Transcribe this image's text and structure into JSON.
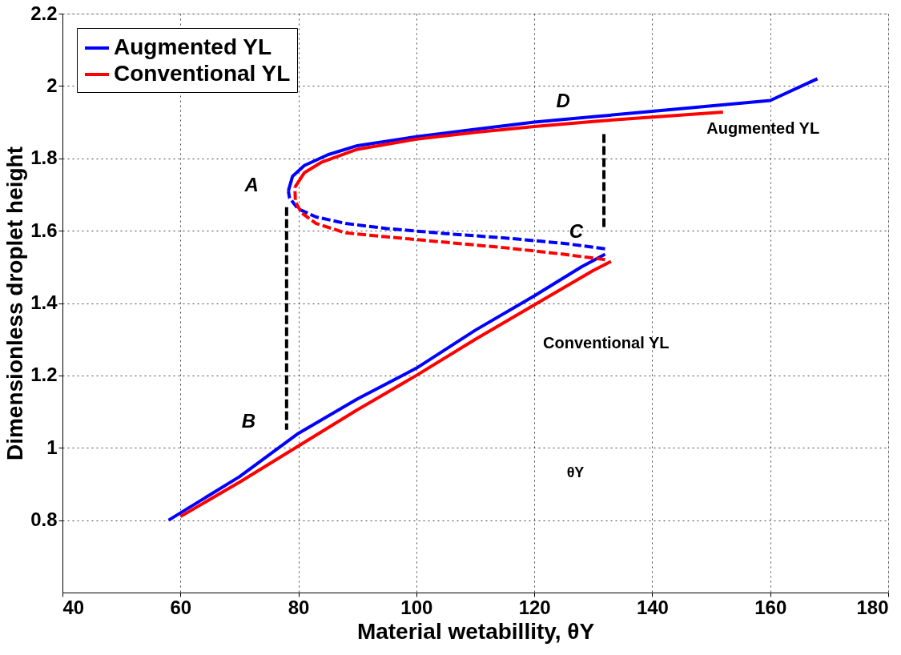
{
  "chart_data": {
    "type": "line",
    "xlabel": "Material wetabillity, θY",
    "ylabel": "Dimensionless droplet height",
    "xlim": [
      40,
      180
    ],
    "xticks": [
      40,
      60,
      80,
      100,
      120,
      140,
      160,
      180
    ],
    "ylim": [
      0.6,
      2.2
    ],
    "yticks": [
      0.8,
      1,
      1.2,
      1.4,
      1.6,
      1.8,
      2,
      2.2
    ],
    "grid": true,
    "legend": "top left",
    "line_style": "solid",
    "marker": "none",
    "series": [
      {
        "name": "Augmented YL",
        "color": "#0000ff",
        "x": [
          58,
          65,
          70,
          80,
          90,
          100,
          110,
          120,
          128,
          132,
          null,
          78.3,
          79,
          81,
          85,
          90,
          100,
          110,
          120,
          130,
          140,
          150,
          160,
          168
        ],
        "values": [
          0.8,
          0.87,
          0.92,
          1.04,
          1.135,
          1.22,
          1.325,
          1.42,
          1.5,
          1.535,
          null,
          1.71,
          1.75,
          1.78,
          1.81,
          1.835,
          1.86,
          1.88,
          1.9,
          1.915,
          1.93,
          1.945,
          1.96,
          2.02
        ]
      },
      {
        "name": "Conventional YL",
        "color": "#ff0000",
        "x": [
          60,
          70,
          80,
          90,
          100,
          110,
          120,
          130,
          133,
          null,
          79.4,
          81,
          84,
          90,
          100,
          110,
          120,
          130,
          140,
          152
        ],
        "values": [
          0.81,
          0.905,
          1.005,
          1.105,
          1.2,
          1.3,
          1.395,
          1.49,
          1.515,
          null,
          1.72,
          1.76,
          1.79,
          1.825,
          1.853,
          1.872,
          1.888,
          1.902,
          1.914,
          1.928
        ]
      },
      {
        "color": "#0000ff",
        "line_style": "dashed",
        "x": [
          132,
          125,
          115,
          105,
          95,
          88,
          83,
          80,
          78.5,
          78.3
        ],
        "values": [
          1.55,
          1.565,
          1.58,
          1.592,
          1.606,
          1.62,
          1.638,
          1.66,
          1.69,
          1.71
        ]
      },
      {
        "color": "#ff0000",
        "line_style": "dashed",
        "x": [
          132,
          125,
          115,
          105,
          95,
          88,
          83,
          80.5,
          79.5,
          79.4
        ],
        "values": [
          1.52,
          1.535,
          1.553,
          1.568,
          1.583,
          1.594,
          1.62,
          1.65,
          1.68,
          1.72
        ]
      },
      {
        "color": "#000000",
        "line_style": "dashed",
        "x": [
          78,
          78
        ],
        "values": [
          1.665,
          1.05
        ]
      },
      {
        "color": "#000000",
        "line_style": "dashed",
        "x": [
          131.8,
          131.8
        ],
        "values": [
          1.61,
          1.87
        ]
      }
    ],
    "annotations": [
      "A",
      "B",
      "C",
      "D",
      "Augmented YL",
      "Conventional YL",
      "θY"
    ]
  }
}
